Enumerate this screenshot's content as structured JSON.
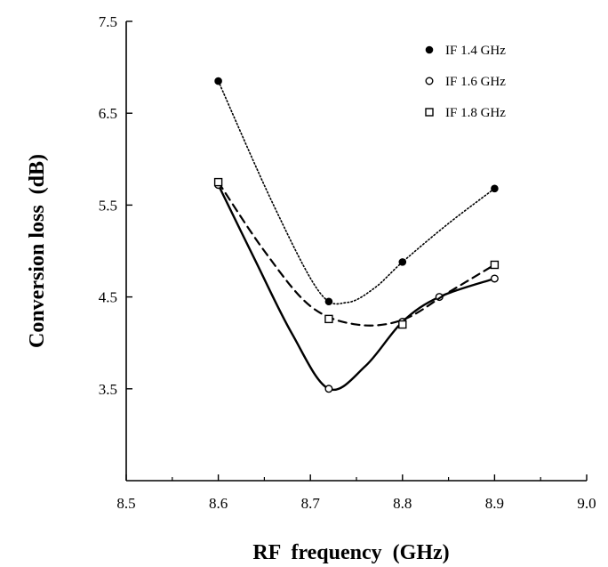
{
  "chart_data": {
    "type": "line",
    "title": "",
    "xlabel": "RF  frequency  (GHz)",
    "ylabel": "Conversion loss  (dB)",
    "xlim": [
      8.5,
      9.0
    ],
    "ylim": [
      2.5,
      7.5
    ],
    "x_ticks": [
      "8.5",
      "8.6",
      "8.7",
      "8.8",
      "8.9",
      "9.0"
    ],
    "y_ticks": [
      "3.5",
      "4.5",
      "5.5",
      "6.5",
      "7.5"
    ],
    "grid": false,
    "legend_position": "top-right",
    "series": [
      {
        "name": "IF  1.4  GHz",
        "marker": "filled-circle",
        "line_style": "dotted",
        "points": [
          {
            "x": 8.6,
            "y": 6.85
          },
          {
            "x": 8.72,
            "y": 4.45
          },
          {
            "x": 8.8,
            "y": 4.88
          },
          {
            "x": 8.9,
            "y": 5.68
          }
        ],
        "curve": [
          {
            "x": 8.6,
            "y": 6.85
          },
          {
            "x": 8.66,
            "y": 5.5
          },
          {
            "x": 8.71,
            "y": 4.55
          },
          {
            "x": 8.74,
            "y": 4.44
          },
          {
            "x": 8.77,
            "y": 4.6
          },
          {
            "x": 8.8,
            "y": 4.88
          },
          {
            "x": 8.85,
            "y": 5.3
          },
          {
            "x": 8.9,
            "y": 5.68
          }
        ]
      },
      {
        "name": "IF  1.6  GHz",
        "marker": "open-circle",
        "line_style": "solid",
        "points": [
          {
            "x": 8.6,
            "y": 5.72
          },
          {
            "x": 8.72,
            "y": 3.5
          },
          {
            "x": 8.8,
            "y": 4.23
          },
          {
            "x": 8.84,
            "y": 4.5
          },
          {
            "x": 8.9,
            "y": 4.7
          }
        ],
        "curve": [
          {
            "x": 8.6,
            "y": 5.72
          },
          {
            "x": 8.64,
            "y": 4.9
          },
          {
            "x": 8.68,
            "y": 4.1
          },
          {
            "x": 8.72,
            "y": 3.5
          },
          {
            "x": 8.76,
            "y": 3.75
          },
          {
            "x": 8.8,
            "y": 4.23
          },
          {
            "x": 8.84,
            "y": 4.5
          },
          {
            "x": 8.9,
            "y": 4.7
          }
        ]
      },
      {
        "name": "IF  1.8 GHz",
        "marker": "open-square",
        "line_style": "dashed",
        "points": [
          {
            "x": 8.6,
            "y": 5.75
          },
          {
            "x": 8.72,
            "y": 4.26
          },
          {
            "x": 8.8,
            "y": 4.2
          },
          {
            "x": 8.9,
            "y": 4.85
          }
        ],
        "curve": [
          {
            "x": 8.6,
            "y": 5.75
          },
          {
            "x": 8.65,
            "y": 5.0
          },
          {
            "x": 8.7,
            "y": 4.4
          },
          {
            "x": 8.75,
            "y": 4.2
          },
          {
            "x": 8.8,
            "y": 4.25
          },
          {
            "x": 8.85,
            "y": 4.55
          },
          {
            "x": 8.9,
            "y": 4.85
          }
        ]
      }
    ]
  }
}
